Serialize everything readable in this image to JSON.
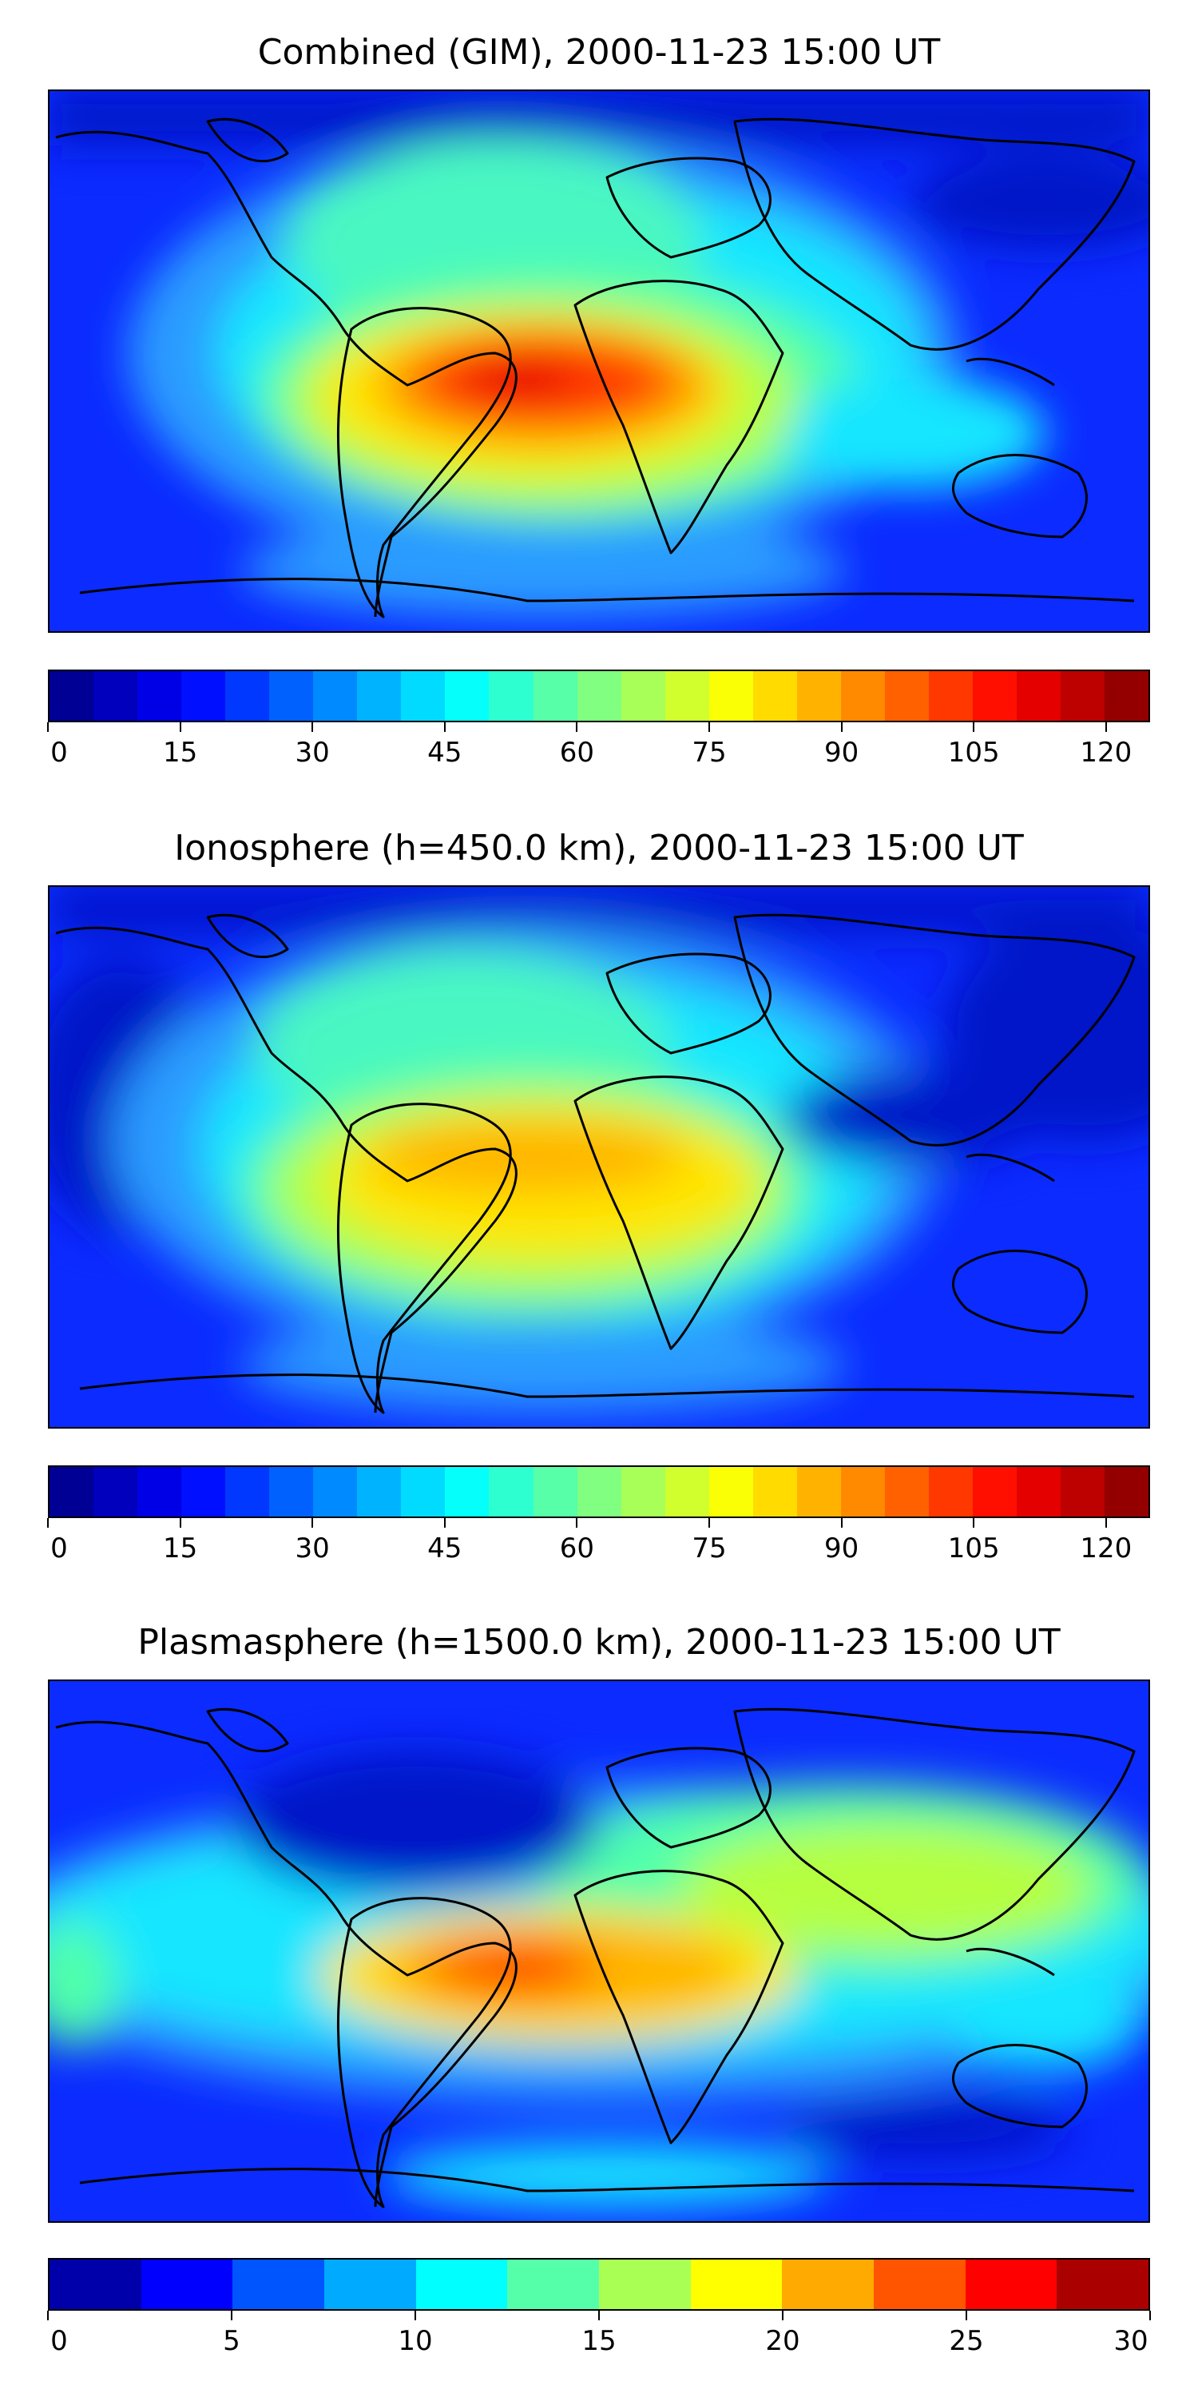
{
  "panels": [
    {
      "title": "Combined (GIM), 2000-11-23 15:00 UT",
      "colorbar": {
        "vmin": 0,
        "vmax": 125,
        "levels": 25,
        "tick_labels": [
          "0",
          "15",
          "30",
          "45",
          "60",
          "75",
          "90",
          "105",
          "120"
        ],
        "tick_values": [
          0,
          15,
          30,
          45,
          60,
          75,
          90,
          105,
          120
        ]
      }
    },
    {
      "title": "Ionosphere  (h=450.0 km), 2000-11-23 15:00 UT",
      "colorbar": {
        "vmin": 0,
        "vmax": 125,
        "levels": 25,
        "tick_labels": [
          "0",
          "15",
          "30",
          "45",
          "60",
          "75",
          "90",
          "105",
          "120"
        ],
        "tick_values": [
          0,
          15,
          30,
          45,
          60,
          75,
          90,
          105,
          120
        ]
      }
    },
    {
      "title": "Plasmasphere (h=1500.0 km), 2000-11-23 15:00 UT",
      "colorbar": {
        "vmin": 0,
        "vmax": 30,
        "levels": 12,
        "tick_labels": [
          "0",
          "5",
          "10",
          "15",
          "20",
          "25",
          "30"
        ],
        "tick_values": [
          0,
          5,
          10,
          15,
          20,
          25,
          30
        ]
      }
    }
  ],
  "colormap": "jet"
}
